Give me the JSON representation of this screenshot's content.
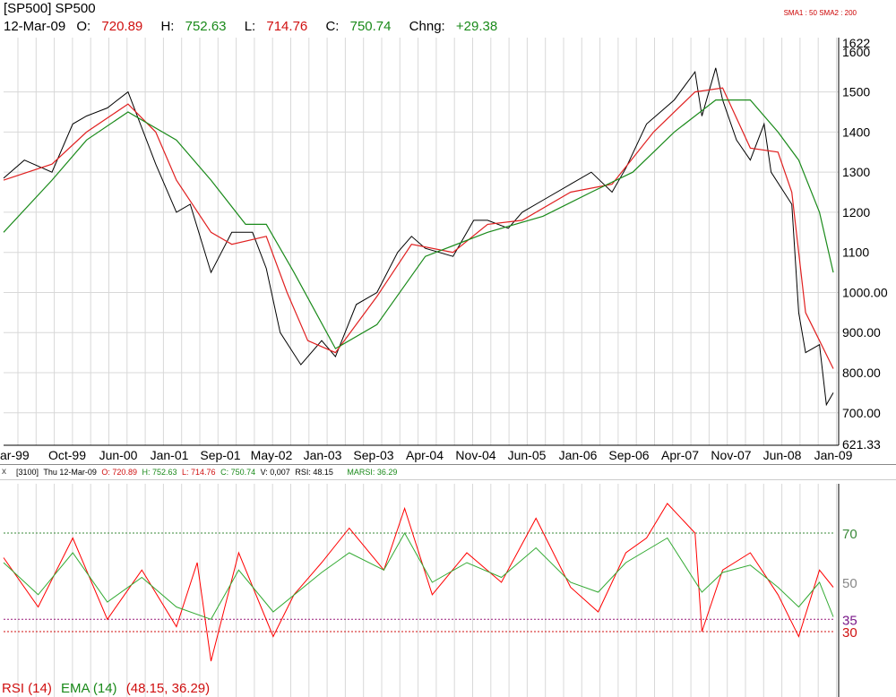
{
  "header": {
    "ticker": "[SP500] SP500",
    "date": "12-Mar-09",
    "open_label": "O:",
    "open": "720.89",
    "high_label": "H:",
    "high": "752.63",
    "low_label": "L:",
    "low": "714.76",
    "close_label": "C:",
    "close": "750.74",
    "change_label": "Chng:",
    "change": "+29.38"
  },
  "sma_legend": {
    "sma1": "SMA1 : 50",
    "sma2": "SMA2 : 200"
  },
  "subheader": {
    "close_btn": "x",
    "id": "[3100]",
    "date": "Thu 12-Mar-09",
    "o": "O: 720.89",
    "h": "H: 752.63",
    "l": "L: 714.76",
    "c": "C: 750.74",
    "v": "V: 0,007",
    "rsi": "RSI: 48.15",
    "marsi": "MARSI: 36.29"
  },
  "rsi_footer": {
    "rsi": "RSI (14)",
    "ema": "EMA (14)",
    "vals": "(48.15, 36.29)"
  },
  "colors": {
    "price": "#000000",
    "sma50": "#e02020",
    "sma200": "#1a8a1a",
    "rsi": "#ff0000",
    "ema": "#33aa33",
    "grid": "#d8d8d8"
  },
  "chart_data": [
    {
      "type": "line",
      "title": "SP500",
      "x_tick_labels": [
        "ar-99",
        "Oct-99",
        "Jun-00",
        "Jan-01",
        "Sep-01",
        "May-02",
        "Jan-03",
        "Sep-03",
        "Apr-04",
        "Nov-04",
        "Jun-05",
        "Jan-06",
        "Sep-06",
        "Apr-07",
        "Nov-07",
        "Jun-08",
        "Jan-09"
      ],
      "y_tick_labels": [
        "1622",
        "1600",
        "1500",
        "1400",
        "1300",
        "1200",
        "1100",
        "1000.00",
        "900.00",
        "800.00",
        "700.00",
        "621.33"
      ],
      "ylim": [
        621.33,
        1622
      ],
      "grid": true,
      "series": [
        {
          "name": "Price",
          "x": [
            "1999-03",
            "1999-06",
            "1999-10",
            "2000-01",
            "2000-03",
            "2000-06",
            "2000-09",
            "2001-01",
            "2001-04",
            "2001-06",
            "2001-09",
            "2001-12",
            "2002-03",
            "2002-05",
            "2002-07",
            "2002-10",
            "2003-01",
            "2003-03",
            "2003-06",
            "2003-09",
            "2003-12",
            "2004-02",
            "2004-04",
            "2004-08",
            "2004-11",
            "2005-01",
            "2005-04",
            "2005-06",
            "2005-09",
            "2006-01",
            "2006-04",
            "2006-07",
            "2006-09",
            "2006-12",
            "2007-02",
            "2007-04",
            "2007-07",
            "2007-08",
            "2007-10",
            "2007-11",
            "2008-01",
            "2008-03",
            "2008-05",
            "2008-06",
            "2008-09",
            "2008-10",
            "2008-11",
            "2009-01",
            "2009-02",
            "2009-03"
          ],
          "values": [
            1285,
            1330,
            1300,
            1420,
            1440,
            1460,
            1500,
            1320,
            1200,
            1220,
            1050,
            1150,
            1150,
            1060,
            900,
            820,
            880,
            840,
            970,
            1000,
            1100,
            1140,
            1110,
            1090,
            1180,
            1180,
            1160,
            1200,
            1230,
            1270,
            1300,
            1250,
            1310,
            1420,
            1450,
            1480,
            1550,
            1440,
            1560,
            1480,
            1380,
            1330,
            1420,
            1300,
            1220,
            950,
            850,
            870,
            720,
            750
          ]
        },
        {
          "name": "SMA1 : 50",
          "x": [
            "1999-03",
            "1999-10",
            "2000-03",
            "2000-09",
            "2001-01",
            "2001-04",
            "2001-09",
            "2001-12",
            "2002-05",
            "2002-08",
            "2002-11",
            "2003-03",
            "2003-09",
            "2004-02",
            "2004-08",
            "2005-01",
            "2005-06",
            "2006-01",
            "2006-07",
            "2007-01",
            "2007-07",
            "2007-11",
            "2008-03",
            "2008-07",
            "2008-09",
            "2008-11",
            "2009-01",
            "2009-03"
          ],
          "values": [
            1280,
            1320,
            1400,
            1470,
            1400,
            1280,
            1150,
            1120,
            1140,
            1000,
            880,
            850,
            990,
            1120,
            1100,
            1170,
            1180,
            1250,
            1270,
            1400,
            1500,
            1510,
            1360,
            1350,
            1250,
            950,
            880,
            810
          ]
        },
        {
          "name": "SMA2 : 200",
          "x": [
            "1999-03",
            "1999-10",
            "2000-03",
            "2000-09",
            "2001-04",
            "2001-09",
            "2002-02",
            "2002-05",
            "2002-09",
            "2003-03",
            "2003-09",
            "2004-04",
            "2005-01",
            "2005-09",
            "2006-04",
            "2006-10",
            "2007-04",
            "2007-10",
            "2008-03",
            "2008-07",
            "2008-10",
            "2009-01",
            "2009-03"
          ],
          "values": [
            1150,
            1280,
            1380,
            1450,
            1380,
            1280,
            1170,
            1170,
            1050,
            860,
            920,
            1090,
            1150,
            1190,
            1250,
            1300,
            1400,
            1480,
            1480,
            1400,
            1330,
            1200,
            1050
          ]
        }
      ]
    },
    {
      "type": "line",
      "x_tick_labels": [],
      "y_tick_labels": [
        "70",
        "50",
        "35",
        "30"
      ],
      "reference_lines": [
        70,
        35,
        30
      ],
      "ylim": [
        10,
        90
      ],
      "series": [
        {
          "name": "RSI (14)",
          "x": [
            "1999-03",
            "1999-08",
            "2000-01",
            "2000-06",
            "2000-11",
            "2001-04",
            "2001-07",
            "2001-09",
            "2002-01",
            "2002-06",
            "2002-09",
            "2003-01",
            "2003-05",
            "2003-10",
            "2004-01",
            "2004-05",
            "2004-10",
            "2005-03",
            "2005-08",
            "2006-01",
            "2006-05",
            "2006-09",
            "2006-12",
            "2007-03",
            "2007-07",
            "2007-08",
            "2007-11",
            "2008-03",
            "2008-07",
            "2008-10",
            "2009-01",
            "2009-03"
          ],
          "values": [
            60,
            40,
            68,
            35,
            55,
            32,
            58,
            18,
            62,
            28,
            45,
            58,
            72,
            55,
            80,
            45,
            62,
            50,
            76,
            48,
            38,
            62,
            68,
            82,
            70,
            30,
            55,
            62,
            45,
            28,
            55,
            48
          ]
        },
        {
          "name": "EMA (14)",
          "x": [
            "1999-03",
            "1999-08",
            "2000-01",
            "2000-06",
            "2000-11",
            "2001-04",
            "2001-09",
            "2002-01",
            "2002-06",
            "2003-01",
            "2003-05",
            "2003-10",
            "2004-01",
            "2004-05",
            "2004-10",
            "2005-03",
            "2005-08",
            "2006-01",
            "2006-05",
            "2006-09",
            "2007-03",
            "2007-08",
            "2007-11",
            "2008-03",
            "2008-07",
            "2008-10",
            "2009-01",
            "2009-03"
          ],
          "values": [
            58,
            45,
            62,
            42,
            52,
            40,
            35,
            55,
            38,
            54,
            62,
            55,
            70,
            50,
            58,
            52,
            64,
            50,
            46,
            58,
            68,
            46,
            54,
            57,
            48,
            40,
            50,
            36
          ]
        }
      ]
    }
  ]
}
